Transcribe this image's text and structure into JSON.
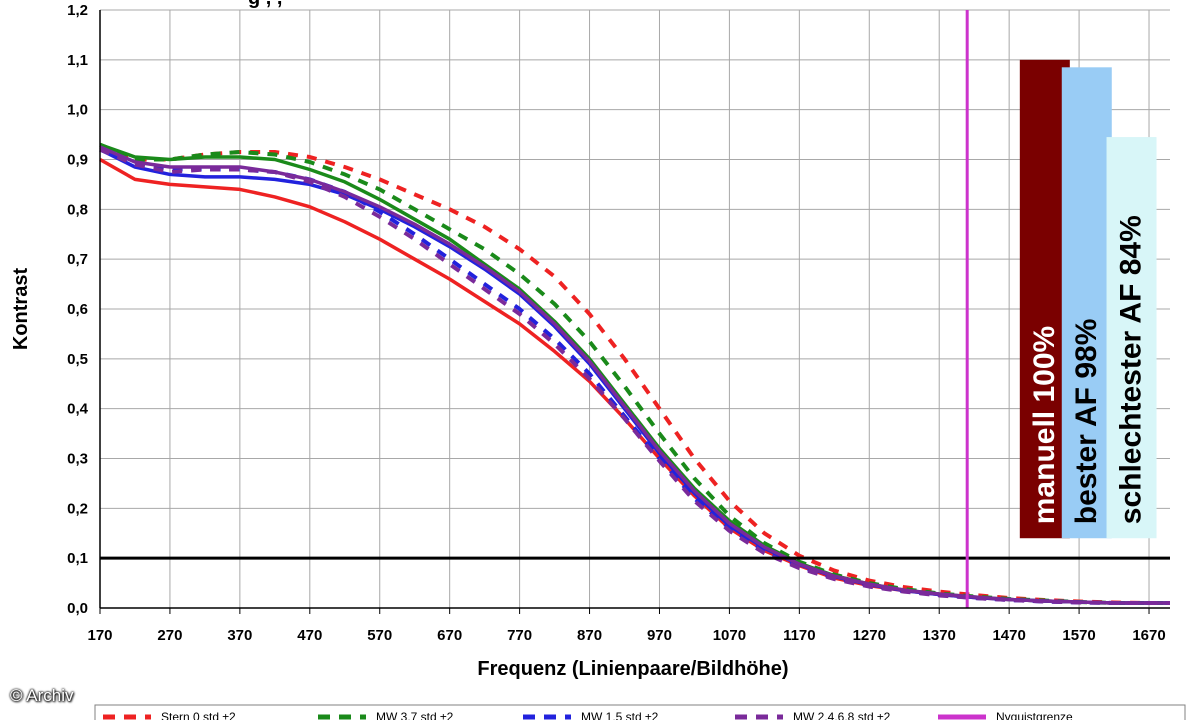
{
  "credit": "© Archiv",
  "chart_data": {
    "type": "line",
    "title_fragment": "g , ,",
    "xlabel": "Frequenz (Linienpaare/Bildhöhe)",
    "ylabel": "Kontrast",
    "xlim": [
      170,
      1700
    ],
    "ylim": [
      0,
      1.2
    ],
    "x_ticks": [
      "170",
      "270",
      "370",
      "470",
      "570",
      "670",
      "770",
      "870",
      "970",
      "1070",
      "1170",
      "1270",
      "1370",
      "1470",
      "1570",
      "1670"
    ],
    "y_ticks": [
      "0,0",
      "0,1",
      "0,2",
      "0,3",
      "0,4",
      "0,5",
      "0,6",
      "0,7",
      "0,8",
      "0,9",
      "1,0",
      "1,1",
      "1,2"
    ],
    "grid": true,
    "reference_line": {
      "y": 0.1,
      "color": "#000000"
    },
    "nyquist": {
      "x": 1410,
      "color": "#cc33cc"
    },
    "x": [
      170,
      220,
      270,
      320,
      370,
      420,
      470,
      520,
      570,
      620,
      670,
      720,
      770,
      820,
      870,
      920,
      970,
      1020,
      1070,
      1120,
      1170,
      1220,
      1270,
      1320,
      1370,
      1420,
      1470,
      1520,
      1570,
      1620,
      1670,
      1700
    ],
    "series": [
      {
        "name": "Stern 0 std ±2",
        "color": "#ee2222",
        "dash": false,
        "values": [
          0.9,
          0.86,
          0.85,
          0.845,
          0.84,
          0.825,
          0.805,
          0.775,
          0.74,
          0.7,
          0.66,
          0.615,
          0.57,
          0.515,
          0.455,
          0.38,
          0.3,
          0.225,
          0.16,
          0.115,
          0.085,
          0.06,
          0.045,
          0.035,
          0.027,
          0.021,
          0.017,
          0.014,
          0.012,
          0.01,
          0.01,
          0.01
        ]
      },
      {
        "name": "Stern 0 std ±2",
        "color": "#ee2222",
        "dash": true,
        "values": [
          0.92,
          0.9,
          0.9,
          0.91,
          0.915,
          0.915,
          0.905,
          0.885,
          0.86,
          0.83,
          0.8,
          0.765,
          0.72,
          0.665,
          0.59,
          0.5,
          0.4,
          0.3,
          0.215,
          0.15,
          0.105,
          0.075,
          0.055,
          0.042,
          0.033,
          0.026,
          0.02,
          0.016,
          0.013,
          0.011,
          0.01,
          0.01
        ]
      },
      {
        "name": "MW 3,7 std ±2",
        "color": "#1a8a1a",
        "dash": false,
        "values": [
          0.93,
          0.905,
          0.9,
          0.905,
          0.905,
          0.9,
          0.88,
          0.855,
          0.82,
          0.78,
          0.74,
          0.69,
          0.64,
          0.575,
          0.5,
          0.41,
          0.32,
          0.24,
          0.175,
          0.125,
          0.09,
          0.065,
          0.048,
          0.036,
          0.028,
          0.022,
          0.017,
          0.014,
          0.012,
          0.01,
          0.01,
          0.01
        ]
      },
      {
        "name": "MW 3,7 std ±2",
        "color": "#1a8a1a",
        "dash": true,
        "values": [
          0.93,
          0.9,
          0.9,
          0.91,
          0.915,
          0.91,
          0.895,
          0.87,
          0.84,
          0.8,
          0.76,
          0.72,
          0.67,
          0.61,
          0.535,
          0.445,
          0.35,
          0.26,
          0.185,
          0.13,
          0.093,
          0.067,
          0.05,
          0.038,
          0.029,
          0.023,
          0.018,
          0.015,
          0.012,
          0.01,
          0.01,
          0.01
        ]
      },
      {
        "name": "MW 1,5 std ±2",
        "color": "#2222dd",
        "dash": false,
        "values": [
          0.92,
          0.885,
          0.87,
          0.865,
          0.865,
          0.86,
          0.85,
          0.83,
          0.8,
          0.765,
          0.725,
          0.68,
          0.63,
          0.565,
          0.49,
          0.4,
          0.31,
          0.23,
          0.165,
          0.12,
          0.087,
          0.063,
          0.047,
          0.035,
          0.027,
          0.021,
          0.017,
          0.014,
          0.012,
          0.01,
          0.01,
          0.01
        ]
      },
      {
        "name": "MW 1,5 std ±2",
        "color": "#2222dd",
        "dash": true,
        "values": [
          0.92,
          0.89,
          0.88,
          0.88,
          0.88,
          0.875,
          0.86,
          0.835,
          0.795,
          0.75,
          0.7,
          0.65,
          0.6,
          0.54,
          0.47,
          0.385,
          0.3,
          0.22,
          0.16,
          0.115,
          0.083,
          0.06,
          0.045,
          0.034,
          0.026,
          0.02,
          0.016,
          0.013,
          0.011,
          0.01,
          0.01,
          0.01
        ]
      },
      {
        "name": "MW 2,4,6,8 std ±2",
        "color": "#7a2a9a",
        "dash": false,
        "values": [
          0.925,
          0.895,
          0.885,
          0.885,
          0.885,
          0.875,
          0.86,
          0.835,
          0.805,
          0.77,
          0.73,
          0.685,
          0.635,
          0.57,
          0.495,
          0.405,
          0.315,
          0.235,
          0.17,
          0.122,
          0.088,
          0.064,
          0.048,
          0.036,
          0.028,
          0.022,
          0.017,
          0.014,
          0.012,
          0.01,
          0.01,
          0.01
        ]
      },
      {
        "name": "MW 2,4,6,8 std ±2",
        "color": "#7a2a9a",
        "dash": true,
        "values": [
          0.92,
          0.89,
          0.875,
          0.88,
          0.88,
          0.875,
          0.855,
          0.825,
          0.785,
          0.74,
          0.69,
          0.64,
          0.59,
          0.53,
          0.46,
          0.38,
          0.295,
          0.215,
          0.155,
          0.11,
          0.08,
          0.058,
          0.043,
          0.033,
          0.025,
          0.02,
          0.016,
          0.013,
          0.011,
          0.01,
          0.01,
          0.01
        ]
      }
    ],
    "bars": [
      {
        "label": "manuell 100%",
        "value": 1.1,
        "fill": "#7a0000",
        "text_color": "#ffffff"
      },
      {
        "label": "bester AF 98%",
        "value": 1.085,
        "fill": "#99ccf5",
        "text_color": "#000000"
      },
      {
        "label": "schlechtester AF 84%",
        "value": 0.945,
        "fill": "#d8f6f8",
        "text_color": "#000000"
      }
    ],
    "legend": {
      "placement": "bottom",
      "entries": [
        {
          "label": "Stern 0 std ±2",
          "color": "#ee2222",
          "dash": true
        },
        {
          "label": "MW 3,7 std ±2",
          "color": "#1a8a1a",
          "dash": true
        },
        {
          "label": "MW 1,5 std ±2",
          "color": "#2222dd",
          "dash": true
        },
        {
          "label": "MW 2,4,6,8 std ±2",
          "color": "#7a2a9a",
          "dash": true
        },
        {
          "label": "Nyquistgrenze",
          "color": "#cc33cc",
          "dash": false
        }
      ]
    }
  }
}
